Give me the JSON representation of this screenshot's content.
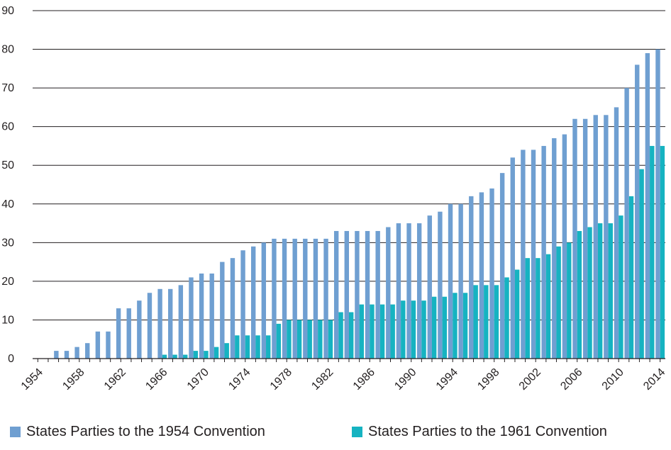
{
  "chart_data": {
    "type": "bar",
    "title": "",
    "xlabel": "",
    "ylabel": "",
    "ylim": [
      0,
      90
    ],
    "yticks": [
      0,
      10,
      20,
      30,
      40,
      50,
      60,
      70,
      80,
      90
    ],
    "x_tick_labels": [
      "1954",
      "1958",
      "1962",
      "1966",
      "1970",
      "1974",
      "1978",
      "1982",
      "1986",
      "1990",
      "1994",
      "1998",
      "2002",
      "2006",
      "2010",
      "2014"
    ],
    "grid": "horizontal",
    "legend_position": "bottom",
    "categories": [
      "1954",
      "1955",
      "1956",
      "1957",
      "1958",
      "1959",
      "1960",
      "1961",
      "1962",
      "1963",
      "1964",
      "1965",
      "1966",
      "1967",
      "1968",
      "1969",
      "1970",
      "1971",
      "1972",
      "1973",
      "1974",
      "1975",
      "1976",
      "1977",
      "1978",
      "1979",
      "1980",
      "1981",
      "1982",
      "1983",
      "1984",
      "1985",
      "1986",
      "1987",
      "1988",
      "1989",
      "1990",
      "1991",
      "1992",
      "1993",
      "1994",
      "1995",
      "1996",
      "1997",
      "1998",
      "1999",
      "2000",
      "2001",
      "2002",
      "2003",
      "2004",
      "2005",
      "2006",
      "2007",
      "2008",
      "2009",
      "2010",
      "2011",
      "2012",
      "2013",
      "2014"
    ],
    "series": [
      {
        "name": "States Parties to the 1954 Convention",
        "color": "#6f9fd1",
        "values": [
          0,
          0,
          2,
          2,
          3,
          4,
          7,
          7,
          13,
          13,
          15,
          17,
          18,
          18,
          19,
          21,
          22,
          22,
          25,
          26,
          28,
          29,
          30,
          31,
          31,
          31,
          31,
          31,
          31,
          33,
          33,
          33,
          33,
          33,
          34,
          35,
          35,
          35,
          37,
          38,
          40,
          40,
          42,
          43,
          44,
          48,
          52,
          54,
          54,
          55,
          57,
          58,
          62,
          62,
          63,
          63,
          65,
          70,
          76,
          79,
          80
        ]
      },
      {
        "name": "States Parties to the 1961 Convention",
        "color": "#16b3c1",
        "values": [
          0,
          0,
          0,
          0,
          0,
          0,
          0,
          0,
          0,
          0,
          0,
          0,
          1,
          1,
          1,
          2,
          2,
          3,
          4,
          6,
          6,
          6,
          6,
          9,
          10,
          10,
          10,
          10,
          10,
          12,
          12,
          14,
          14,
          14,
          14,
          15,
          15,
          15,
          16,
          16,
          17,
          17,
          19,
          19,
          19,
          21,
          23,
          26,
          26,
          27,
          29,
          30,
          33,
          34,
          35,
          35,
          37,
          42,
          49,
          55,
          55
        ]
      }
    ]
  }
}
